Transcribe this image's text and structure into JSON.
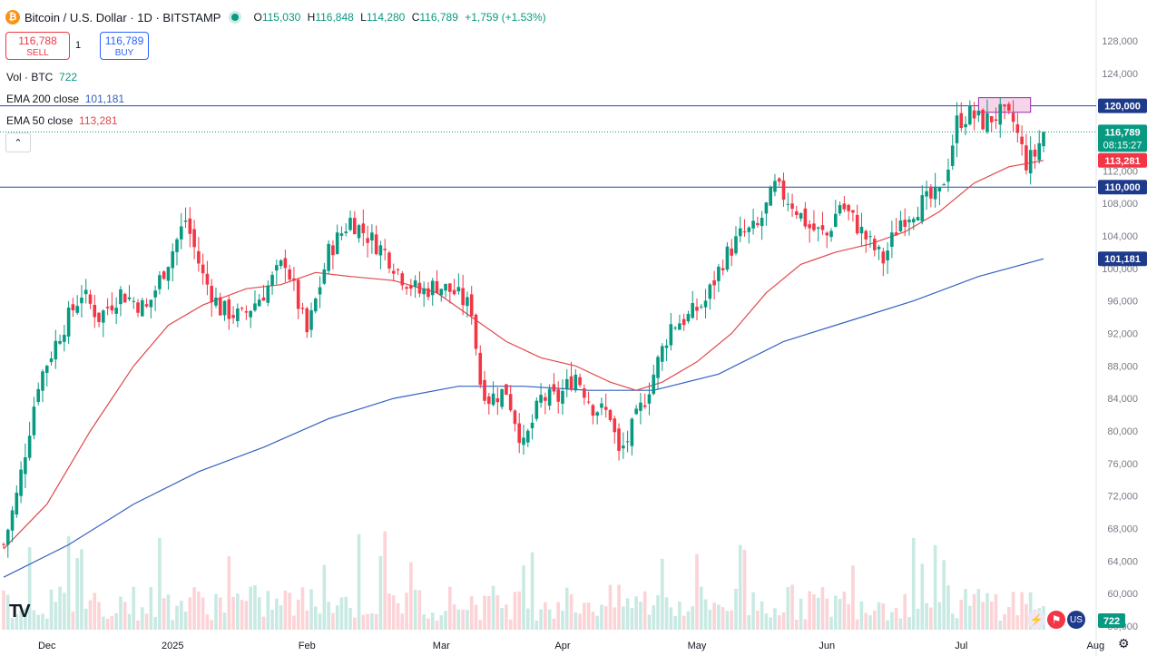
{
  "header": {
    "symbol": "Bitcoin / U.S. Dollar · 1D · BITSTAMP",
    "logo_glyph": "₿",
    "ohlc": {
      "o_label": "O",
      "o": "115,030",
      "h_label": "H",
      "h": "116,848",
      "l_label": "L",
      "l": "114,280",
      "c_label": "C",
      "c": "116,789",
      "change": "+1,759 (+1.53%)"
    }
  },
  "trade": {
    "sell_price": "116,788",
    "sell_label": "SELL",
    "spread": "1",
    "buy_price": "116,789",
    "buy_label": "BUY"
  },
  "indicators": {
    "vol_label": "Vol · BTC",
    "vol_value": "722",
    "ema200_label": "EMA 200 close",
    "ema200_value": "101,181",
    "ema50_label": "EMA 50 close",
    "ema50_value": "113,281",
    "collapse_glyph": "⌃"
  },
  "colors": {
    "up": "#089981",
    "down": "#f23645",
    "ema50": "#e0494d",
    "ema200": "#3461c1",
    "hline": "#2a47a5",
    "zone_fill": "#f5d5ea",
    "zone_border": "#9c27b0",
    "price_line": "#089981"
  },
  "chart_data": {
    "type": "candlestick",
    "title": "Bitcoin / U.S. Dollar · 1D · BITSTAMP",
    "ylim": [
      56000,
      130000
    ],
    "y_ticks": [
      "128,000",
      "124,000",
      "120,000",
      "116,000",
      "112,000",
      "108,000",
      "104,000",
      "100,000",
      "96,000",
      "92,000",
      "88,000",
      "84,000",
      "80,000",
      "76,000",
      "72,000",
      "68,000",
      "64,000",
      "60,000",
      "56,000"
    ],
    "x_ticks": [
      "Dec",
      "2025",
      "Feb",
      "Mar",
      "Apr",
      "May",
      "Jun",
      "Jul",
      "Aug"
    ],
    "close_path": [
      [
        0,
        66000
      ],
      [
        3,
        72000
      ],
      [
        8,
        86000
      ],
      [
        13,
        92000
      ],
      [
        18,
        97000
      ],
      [
        22,
        94000
      ],
      [
        27,
        97000
      ],
      [
        33,
        95000
      ],
      [
        38,
        101000
      ],
      [
        42,
        106000
      ],
      [
        46,
        99000
      ],
      [
        50,
        95000
      ],
      [
        55,
        94000
      ],
      [
        60,
        97000
      ],
      [
        65,
        101000
      ],
      [
        70,
        92000
      ],
      [
        75,
        102000
      ],
      [
        80,
        106000
      ],
      [
        84,
        104000
      ],
      [
        88,
        102000
      ],
      [
        92,
        99000
      ],
      [
        96,
        97000
      ],
      [
        100,
        98000
      ],
      [
        104,
        97000
      ],
      [
        108,
        95000
      ],
      [
        110,
        86000
      ],
      [
        112,
        84000
      ],
      [
        116,
        85000
      ],
      [
        120,
        78000
      ],
      [
        124,
        84000
      ],
      [
        128,
        84000
      ],
      [
        132,
        87000
      ],
      [
        136,
        83000
      ],
      [
        140,
        82000
      ],
      [
        142,
        77000
      ],
      [
        144,
        79000
      ],
      [
        148,
        84000
      ],
      [
        150,
        87000
      ],
      [
        154,
        93000
      ],
      [
        158,
        94000
      ],
      [
        162,
        96000
      ],
      [
        166,
        101000
      ],
      [
        170,
        104000
      ],
      [
        174,
        105000
      ],
      [
        178,
        110000
      ],
      [
        182,
        108000
      ],
      [
        186,
        105000
      ],
      [
        190,
        104000
      ],
      [
        193,
        108000
      ],
      [
        196,
        106000
      ],
      [
        200,
        103000
      ],
      [
        203,
        101000
      ],
      [
        207,
        106000
      ],
      [
        212,
        108000
      ],
      [
        216,
        109000
      ],
      [
        218,
        113000
      ],
      [
        220,
        118000
      ],
      [
        223,
        119000
      ],
      [
        226,
        118000
      ],
      [
        230,
        119000
      ],
      [
        233,
        118000
      ],
      [
        236,
        113000
      ],
      [
        238,
        114000
      ],
      [
        240,
        116789
      ]
    ],
    "total_days": 240,
    "ema50": [
      [
        0,
        65500
      ],
      [
        10,
        71000
      ],
      [
        20,
        80000
      ],
      [
        30,
        88000
      ],
      [
        38,
        93000
      ],
      [
        46,
        95500
      ],
      [
        56,
        97500
      ],
      [
        64,
        98000
      ],
      [
        72,
        99500
      ],
      [
        80,
        99000
      ],
      [
        90,
        98500
      ],
      [
        100,
        97000
      ],
      [
        108,
        94000
      ],
      [
        116,
        91000
      ],
      [
        124,
        89000
      ],
      [
        132,
        88000
      ],
      [
        140,
        86000
      ],
      [
        146,
        85000
      ],
      [
        152,
        86000
      ],
      [
        160,
        88500
      ],
      [
        168,
        92000
      ],
      [
        176,
        97000
      ],
      [
        184,
        100500
      ],
      [
        192,
        102000
      ],
      [
        200,
        103000
      ],
      [
        208,
        104500
      ],
      [
        216,
        107000
      ],
      [
        224,
        110500
      ],
      [
        232,
        112500
      ],
      [
        240,
        113281
      ]
    ],
    "ema200": [
      [
        0,
        62000
      ],
      [
        15,
        66000
      ],
      [
        30,
        71000
      ],
      [
        45,
        75000
      ],
      [
        60,
        78000
      ],
      [
        75,
        81500
      ],
      [
        90,
        84000
      ],
      [
        105,
        85500
      ],
      [
        120,
        85500
      ],
      [
        135,
        85000
      ],
      [
        150,
        85000
      ],
      [
        165,
        87000
      ],
      [
        180,
        91000
      ],
      [
        195,
        93500
      ],
      [
        210,
        96000
      ],
      [
        225,
        99000
      ],
      [
        240,
        101181
      ]
    ],
    "hlines": [
      120000,
      110000
    ],
    "zone": {
      "x0": 225,
      "x1": 237,
      "y0": 119200,
      "y1": 121000
    },
    "price_labels": {
      "zone_level": "120,000",
      "last": "116,789",
      "countdown": "08:15:27",
      "ema50": "113,281",
      "support": "110,000",
      "ema200": "101,181",
      "volume": "722"
    }
  },
  "footer": {
    "logo": "TV",
    "gear_glyph": "⚙",
    "icon_names": [
      "lightning-icon",
      "flag-icon",
      "us-flag-icon"
    ]
  }
}
